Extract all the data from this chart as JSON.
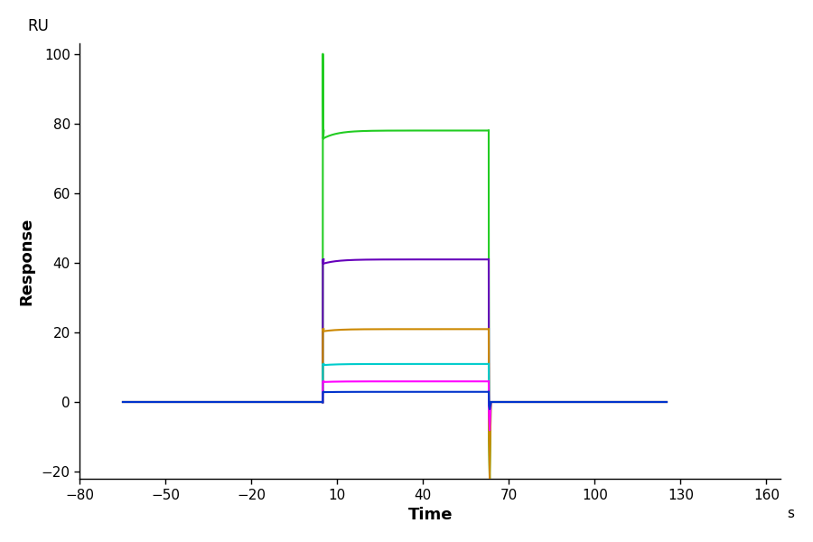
{
  "title": "",
  "xlabel": "Time",
  "ylabel": "Response",
  "xlabel_unit": "s",
  "ylabel_unit": "RU",
  "xlim": [
    -80,
    165
  ],
  "ylim": [
    -22,
    103
  ],
  "xticks": [
    -80,
    -50,
    -20,
    10,
    40,
    70,
    100,
    130,
    160
  ],
  "yticks": [
    -20,
    0,
    20,
    40,
    60,
    80,
    100
  ],
  "background_color": "#ffffff",
  "t_assoc_start": 5,
  "t_assoc_end": 63,
  "t_baseline_start": -65,
  "t_end": 125,
  "curves": [
    {
      "color": "#22cc22",
      "plateau": 78,
      "spike_max": 100,
      "dissoc_spike_min": -22,
      "tau_on": 2.5,
      "tau_off": 3.0,
      "name": "green_high"
    },
    {
      "color": "#6600bb",
      "plateau": 41,
      "spike_max": 41,
      "dissoc_spike_min": -5,
      "tau_on": 2.0,
      "tau_off": 2.5,
      "name": "purple"
    },
    {
      "color": "#cc8800",
      "plateau": 21,
      "spike_max": 21,
      "dissoc_spike_min": -22,
      "tau_on": 2.0,
      "tau_off": 2.5,
      "name": "gold"
    },
    {
      "color": "#00cccc",
      "plateau": 11,
      "spike_max": 11,
      "dissoc_spike_min": -3,
      "tau_on": 2.0,
      "tau_off": 2.5,
      "name": "cyan"
    },
    {
      "color": "#ff00ff",
      "plateau": 6,
      "spike_max": 6,
      "dissoc_spike_min": -8,
      "tau_on": 2.0,
      "tau_off": 2.5,
      "name": "magenta"
    },
    {
      "color": "#0033cc",
      "plateau": 3,
      "spike_max": 3,
      "dissoc_spike_min": -2,
      "tau_on": 2.0,
      "tau_off": 2.5,
      "name": "blue"
    }
  ]
}
